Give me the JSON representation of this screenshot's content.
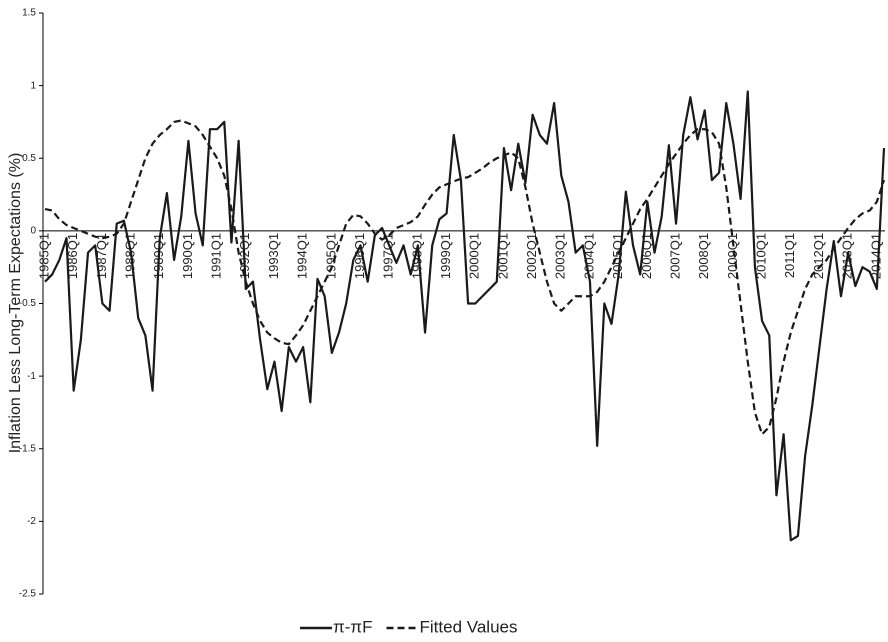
{
  "chart_data": {
    "type": "line",
    "y_label": "Inflation Less Long-Term Expectations (%)",
    "categories": [
      "1985Q1",
      null,
      null,
      null,
      "1986Q1",
      null,
      null,
      null,
      "1987Q1",
      null,
      null,
      null,
      "1988Q1",
      null,
      null,
      null,
      "1989Q1",
      null,
      null,
      null,
      "1990Q1",
      null,
      null,
      null,
      "1991Q1",
      null,
      null,
      null,
      "1992Q1",
      null,
      null,
      null,
      "1993Q1",
      null,
      null,
      null,
      "1994Q1",
      null,
      null,
      null,
      "1995Q1",
      null,
      null,
      null,
      "1996Q1",
      null,
      null,
      null,
      "1997Q1",
      null,
      null,
      null,
      "1998Q1",
      null,
      null,
      null,
      "1999Q1",
      null,
      null,
      null,
      "2000Q1",
      null,
      null,
      null,
      "2001Q1",
      null,
      null,
      null,
      "2002Q1",
      null,
      null,
      null,
      "2003Q1",
      null,
      null,
      null,
      "2004Q1",
      null,
      null,
      null,
      "2005Q1",
      null,
      null,
      null,
      "2006Q1",
      null,
      null,
      null,
      "2007Q1",
      null,
      null,
      null,
      "2008Q1",
      null,
      null,
      null,
      "2009Q1",
      null,
      null,
      null,
      "2010Q1",
      null,
      null,
      null,
      "2011Q1",
      null,
      null,
      null,
      "2012Q1",
      null,
      null,
      null,
      "2013Q1",
      null,
      null,
      null,
      "2014Q1",
      null
    ],
    "series": [
      {
        "name": "π-πF",
        "color": "#1a1a1a",
        "dash": false,
        "values": [
          -0.35,
          -0.3,
          -0.2,
          -0.05,
          -1.1,
          -0.75,
          -0.15,
          -0.1,
          -0.5,
          -0.55,
          0.05,
          0.07,
          -0.15,
          -0.6,
          -0.72,
          -1.1,
          -0.05,
          0.26,
          -0.2,
          0.1,
          0.62,
          0.12,
          -0.1,
          0.7,
          0.7,
          0.75,
          -0.08,
          0.62,
          -0.4,
          -0.35,
          -0.75,
          -1.09,
          -0.9,
          -1.24,
          -0.8,
          -0.9,
          -0.8,
          -1.18,
          -0.33,
          -0.45,
          -0.84,
          -0.7,
          -0.5,
          -0.2,
          -0.1,
          -0.35,
          -0.03,
          0.02,
          -0.1,
          -0.22,
          -0.1,
          -0.3,
          -0.1,
          -0.7,
          -0.1,
          0.08,
          0.12,
          0.66,
          0.35,
          -0.5,
          -0.5,
          -0.45,
          -0.4,
          -0.35,
          0.57,
          0.28,
          0.6,
          0.33,
          0.8,
          0.66,
          0.6,
          0.88,
          0.38,
          0.2,
          -0.15,
          -0.1,
          -0.35,
          -1.48,
          -0.5,
          -0.64,
          -0.3,
          0.27,
          -0.1,
          -0.3,
          0.2,
          -0.15,
          0.1,
          0.59,
          0.05,
          0.66,
          0.92,
          0.63,
          0.83,
          0.35,
          0.4,
          0.88,
          0.6,
          0.22,
          0.96,
          -0.25,
          -0.62,
          -0.72,
          -1.82,
          -1.4,
          -2.13,
          -2.1,
          -1.55,
          -1.2,
          -0.8,
          -0.4,
          -0.07,
          -0.45,
          -0.15,
          -0.38,
          -0.25,
          -0.28,
          -0.4,
          0.57
        ]
      },
      {
        "name": "Fitted Values",
        "color": "#1a1a1a",
        "dash": true,
        "values": [
          0.15,
          0.14,
          0.08,
          0.04,
          0.02,
          0,
          -0.02,
          -0.04,
          -0.05,
          -0.04,
          -0.02,
          0.05,
          0.2,
          0.35,
          0.5,
          0.6,
          0.66,
          0.7,
          0.75,
          0.76,
          0.74,
          0.72,
          0.66,
          0.58,
          0.5,
          0.38,
          0.15,
          -0.15,
          -0.35,
          -0.5,
          -0.62,
          -0.7,
          -0.74,
          -0.77,
          -0.78,
          -0.72,
          -0.65,
          -0.55,
          -0.45,
          -0.35,
          -0.25,
          -0.1,
          0.05,
          0.11,
          0.1,
          0.05,
          -0.02,
          -0.06,
          -0.03,
          0.02,
          0.04,
          0.06,
          0.1,
          0.18,
          0.25,
          0.3,
          0.32,
          0.34,
          0.36,
          0.37,
          0.4,
          0.43,
          0.47,
          0.5,
          0.52,
          0.54,
          0.5,
          0.3,
          0.05,
          -0.15,
          -0.35,
          -0.5,
          -0.55,
          -0.5,
          -0.45,
          -0.45,
          -0.45,
          -0.42,
          -0.35,
          -0.25,
          -0.15,
          -0.05,
          0.05,
          0.15,
          0.22,
          0.3,
          0.38,
          0.46,
          0.53,
          0.6,
          0.66,
          0.7,
          0.7,
          0.68,
          0.6,
          0.3,
          -0.1,
          -0.5,
          -0.9,
          -1.25,
          -1.4,
          -1.35,
          -1.15,
          -0.9,
          -0.7,
          -0.55,
          -0.4,
          -0.3,
          -0.25,
          -0.2,
          -0.12,
          -0.05,
          0.02,
          0.08,
          0.12,
          0.14,
          0.2,
          0.35
        ]
      }
    ],
    "ylim": [
      -2.5,
      1.5
    ],
    "yticks": [
      -2.5,
      -2,
      -1.5,
      -1,
      -0.5,
      0,
      0.5,
      1,
      1.5
    ],
    "legend": "bottom"
  }
}
